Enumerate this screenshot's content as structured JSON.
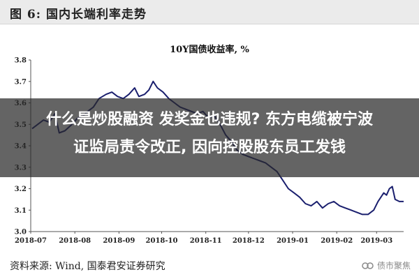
{
  "figure": {
    "header": "图 6:  国内长端利率走势",
    "source": "资料来源:  Wind,  国泰君安证券研究",
    "watermark": "债市聚焦"
  },
  "overlay": {
    "line1": "什么是炒股融资 发奖金也违规? 东方电缆被宁波",
    "line2": "证监局责令改正, 因向控股股东员工发钱"
  },
  "colors": {
    "line": "#1a1f6e",
    "axis": "#555555",
    "overlay": "#282828"
  },
  "chart_data": {
    "type": "line",
    "title": "10Y国债收益率,  %",
    "xlabel": "",
    "ylabel": "",
    "ylim": [
      3.0,
      3.8
    ],
    "yticks": [
      "3.0",
      "3.1",
      "3.2",
      "3.3",
      "3.4",
      "3.5",
      "3.6",
      "3.7",
      "3.8"
    ],
    "xticks": [
      "2018-07",
      "2018-08",
      "2018-09",
      "2018-10",
      "2018-11",
      "2018-12",
      "2019-01",
      "2019-02",
      "2019-03"
    ],
    "x_range": [
      "2018-07",
      "2019-03-20"
    ],
    "grid": false,
    "legend": "none",
    "series": [
      {
        "name": "",
        "points": [
          [
            "2018-07-02",
            3.48
          ],
          [
            "2018-07-06",
            3.5
          ],
          [
            "2018-07-10",
            3.52
          ],
          [
            "2018-07-14",
            3.51
          ],
          [
            "2018-07-18",
            3.55
          ],
          [
            "2018-07-21",
            3.46
          ],
          [
            "2018-07-25",
            3.47
          ],
          [
            "2018-07-30",
            3.5
          ],
          [
            "2018-08-03",
            3.53
          ],
          [
            "2018-08-07",
            3.54
          ],
          [
            "2018-08-10",
            3.56
          ],
          [
            "2018-08-14",
            3.58
          ],
          [
            "2018-08-18",
            3.62
          ],
          [
            "2018-08-23",
            3.64
          ],
          [
            "2018-08-27",
            3.65
          ],
          [
            "2018-08-31",
            3.63
          ],
          [
            "2018-09-04",
            3.62
          ],
          [
            "2018-09-08",
            3.64
          ],
          [
            "2018-09-12",
            3.67
          ],
          [
            "2018-09-15",
            3.63
          ],
          [
            "2018-09-19",
            3.64
          ],
          [
            "2018-09-22",
            3.66
          ],
          [
            "2018-09-25",
            3.7
          ],
          [
            "2018-09-28",
            3.67
          ],
          [
            "2018-10-02",
            3.65
          ],
          [
            "2018-10-06",
            3.62
          ],
          [
            "2018-10-10",
            3.6
          ],
          [
            "2018-10-14",
            3.58
          ],
          [
            "2018-10-18",
            3.57
          ],
          [
            "2018-10-22",
            3.56
          ],
          [
            "2018-10-26",
            3.55
          ],
          [
            "2018-10-30",
            3.56
          ],
          [
            "2018-11-03",
            3.53
          ],
          [
            "2018-11-07",
            3.54
          ],
          [
            "2018-11-11",
            3.5
          ],
          [
            "2018-11-15",
            3.45
          ],
          [
            "2018-11-19",
            3.42
          ],
          [
            "2018-11-23",
            3.38
          ],
          [
            "2018-11-27",
            3.36
          ],
          [
            "2018-12-01",
            3.35
          ],
          [
            "2018-12-05",
            3.34
          ],
          [
            "2018-12-09",
            3.33
          ],
          [
            "2018-12-13",
            3.32
          ],
          [
            "2018-12-17",
            3.3
          ],
          [
            "2018-12-21",
            3.28
          ],
          [
            "2018-12-25",
            3.24
          ],
          [
            "2018-12-29",
            3.2
          ],
          [
            "2019-01-02",
            3.18
          ],
          [
            "2019-01-06",
            3.16
          ],
          [
            "2019-01-10",
            3.13
          ],
          [
            "2019-01-14",
            3.12
          ],
          [
            "2019-01-18",
            3.14
          ],
          [
            "2019-01-22",
            3.11
          ],
          [
            "2019-01-26",
            3.13
          ],
          [
            "2019-01-30",
            3.14
          ],
          [
            "2019-02-03",
            3.12
          ],
          [
            "2019-02-07",
            3.11
          ],
          [
            "2019-02-11",
            3.1
          ],
          [
            "2019-02-15",
            3.09
          ],
          [
            "2019-02-19",
            3.08
          ],
          [
            "2019-02-23",
            3.08
          ],
          [
            "2019-02-27",
            3.1
          ],
          [
            "2019-03-02",
            3.14
          ],
          [
            "2019-03-06",
            3.18
          ],
          [
            "2019-03-08",
            3.17
          ],
          [
            "2019-03-10",
            3.2
          ],
          [
            "2019-03-12",
            3.21
          ],
          [
            "2019-03-14",
            3.15
          ],
          [
            "2019-03-17",
            3.14
          ],
          [
            "2019-03-20",
            3.14
          ]
        ]
      }
    ]
  }
}
